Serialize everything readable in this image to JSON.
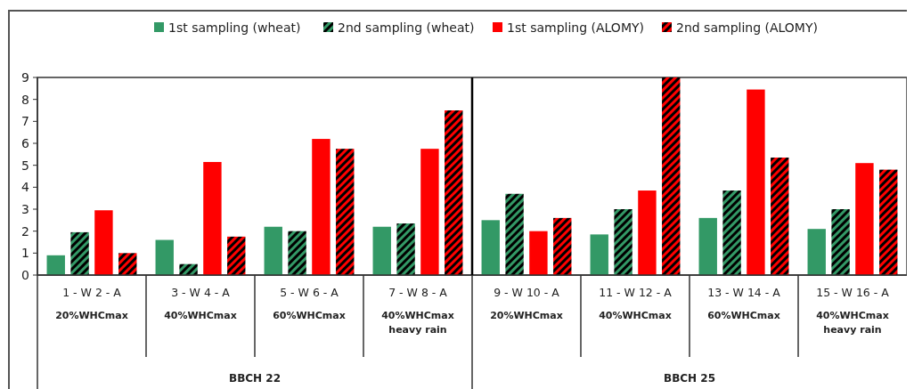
{
  "chart_data": {
    "type": "bar",
    "categories": [
      "1 - W  2 - A\n20%WHCmax",
      "3 - W  4 - A\n40%WHCmax",
      "5 - W  6 - A\n60%WHCmax",
      "7 - W  8 - A\n40%WHCmax\nheavy rain",
      "9 - W  10 - A\n20%WHCmax",
      "11 - W  12 - A\n40%WHCmax",
      "13 - W  14 - A\n60%WHCmax",
      "15 - W  16 - A\n40%WHCmax\nheavy rain"
    ],
    "series": [
      {
        "name": "1st sampling (wheat)",
        "color": "#339966",
        "values": [
          0.9,
          1.6,
          2.2,
          2.2,
          2.5,
          1.85,
          2.6,
          2.1
        ]
      },
      {
        "name": "2nd sampling (wheat)",
        "color": "#339966",
        "values": [
          1.95,
          0.5,
          2.0,
          2.35,
          3.7,
          3.0,
          3.85,
          3.0
        ]
      },
      {
        "name": "1st sampling (ALOMY)",
        "color": "#ff0000",
        "values": [
          2.95,
          5.15,
          6.2,
          5.75,
          2.0,
          3.85,
          8.45,
          5.1
        ]
      },
      {
        "name": "2nd sampling (ALOMY)",
        "color": "#ff0000",
        "values": [
          1.0,
          1.75,
          5.75,
          7.5,
          2.6,
          9.0,
          5.35,
          4.8
        ]
      }
    ],
    "annotations": [
      "BBCH 22",
      "BBCH 25"
    ],
    "ylim": [
      0,
      9
    ],
    "yticks": [
      0,
      1,
      2,
      3,
      4,
      5,
      6,
      7,
      8,
      9
    ],
    "legend": "top",
    "grid": false
  }
}
